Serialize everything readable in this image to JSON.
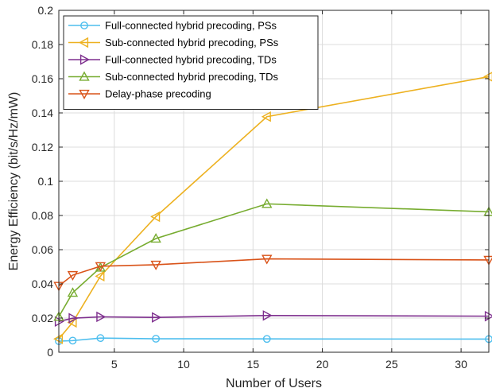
{
  "chart_data": {
    "type": "line",
    "title": "",
    "xlabel": "Number of Users",
    "ylabel": "Energy Efficiency (bit/s/Hz/mW)",
    "xlim": [
      1,
      32
    ],
    "ylim": [
      0,
      0.2
    ],
    "xticks": [
      5,
      10,
      15,
      20,
      25,
      30
    ],
    "xtick_labels": [
      "5",
      "10",
      "15",
      "20",
      "25",
      "30"
    ],
    "yticks": [
      0,
      0.02,
      0.04,
      0.06,
      0.08,
      0.1,
      0.12,
      0.14,
      0.16,
      0.18,
      0.2
    ],
    "ytick_labels": [
      "0",
      "0.02",
      "0.04",
      "0.06",
      "0.08",
      "0.1",
      "0.12",
      "0.14",
      "0.16",
      "0.18",
      "0.2"
    ],
    "grid": true,
    "legend_position": "top-left",
    "x": [
      1,
      2,
      4,
      8,
      16,
      32
    ],
    "series": [
      {
        "name": "Full-connected hybrid precoding, PSs",
        "color": "#4DBEEE",
        "marker": "circle",
        "values": [
          0.0065,
          0.0068,
          0.0083,
          0.0079,
          0.0078,
          0.0077
        ]
      },
      {
        "name": "Sub-connected hybrid precoding, PSs",
        "color": "#EDB120",
        "marker": "triangle-left",
        "values": [
          0.0078,
          0.0175,
          0.0445,
          0.0793,
          0.1378,
          0.1612
        ]
      },
      {
        "name": "Full-connected hybrid precoding, TDs",
        "color": "#7E2F8E",
        "marker": "triangle-right",
        "values": [
          0.018,
          0.0199,
          0.0207,
          0.0204,
          0.0215,
          0.0211
        ]
      },
      {
        "name": "Sub-connected hybrid precoding, TDs",
        "color": "#77AC30",
        "marker": "triangle-up",
        "values": [
          0.0208,
          0.0348,
          0.0495,
          0.0665,
          0.0868,
          0.0821
        ]
      },
      {
        "name": "Delay-phase precoding",
        "color": "#D95319",
        "marker": "triangle-down",
        "values": [
          0.0388,
          0.0451,
          0.0503,
          0.0512,
          0.0546,
          0.054
        ]
      }
    ]
  }
}
